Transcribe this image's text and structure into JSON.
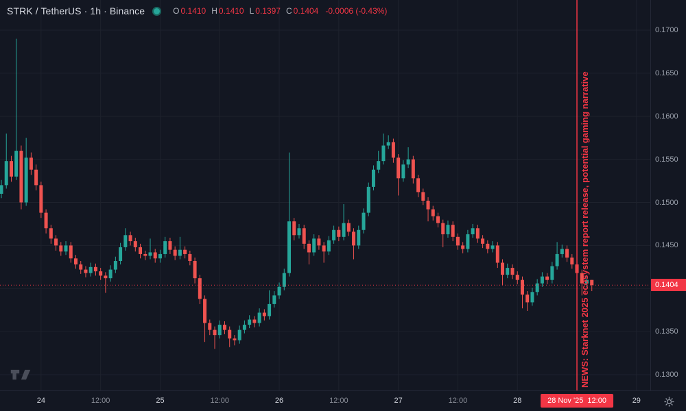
{
  "header": {
    "symbol_title": "STRK / TetherUS · 1h · Binance",
    "ohlc": {
      "o_label": "O",
      "o_value": "0.1410",
      "h_label": "H",
      "h_value": "0.1410",
      "l_label": "L",
      "l_value": "0.1397",
      "c_label": "C",
      "c_value": "0.1404",
      "change": "-0.0006 (-0.43%)"
    }
  },
  "colors": {
    "bg": "#131722",
    "up": "#26a69a",
    "down": "#ef5350",
    "accent_red": "#f23645",
    "grid": "#1e222d",
    "axis_text": "#9aa0ab",
    "axis_text_bright": "#d1d4dc",
    "border": "#242837"
  },
  "news_annotation": {
    "text": "NEWS: Starknet 2025 ecosystem report release, potential gaming narrative",
    "hour": 116
  },
  "price_axis": {
    "tick_labels": [
      "0.1700",
      "0.1650",
      "0.1600",
      "0.1550",
      "0.1500",
      "0.1450",
      "0.1400",
      "0.1350",
      "0.1300"
    ],
    "badge": "0.1404"
  },
  "time_axis": {
    "ticks": [
      {
        "label": "24",
        "hour": 8,
        "emphasis": true
      },
      {
        "label": "12:00",
        "hour": 20,
        "emphasis": false
      },
      {
        "label": "25",
        "hour": 32,
        "emphasis": true
      },
      {
        "label": "12:00",
        "hour": 44,
        "emphasis": false
      },
      {
        "label": "26",
        "hour": 56,
        "emphasis": true
      },
      {
        "label": "12:00",
        "hour": 68,
        "emphasis": false
      },
      {
        "label": "27",
        "hour": 80,
        "emphasis": true
      },
      {
        "label": "12:00",
        "hour": 92,
        "emphasis": false
      },
      {
        "label": "28",
        "hour": 104,
        "emphasis": true
      },
      {
        "label": "29",
        "hour": 128,
        "emphasis": true
      }
    ],
    "crosshair_label": "28 Nov '25  12:00",
    "crosshair_hour": 116
  },
  "icons": {
    "logo": "tradingview-logo",
    "settings": "gear"
  },
  "chart_data": {
    "type": "candlestick",
    "title": "STRK / TetherUS · 1h · Binance",
    "interval": "1h",
    "exchange": "Binance",
    "x_axis_days_visible": [
      "24",
      "25",
      "26",
      "27",
      "28",
      "29"
    ],
    "x_start_label": "23 Nov '25 16:00 (first candle, 1h step)",
    "ylim": [
      0.1285,
      0.1715
    ],
    "price_ticks": [
      0.17,
      0.165,
      0.16,
      0.155,
      0.15,
      0.145,
      0.14,
      0.135,
      0.13
    ],
    "last_price": 0.1404,
    "news_line_hour": 116,
    "grid": true,
    "candles_format": [
      "open",
      "high",
      "low",
      "close"
    ],
    "candles": [
      [
        0.151,
        0.1526,
        0.1505,
        0.152
      ],
      [
        0.152,
        0.158,
        0.1516,
        0.1548
      ],
      [
        0.1548,
        0.1554,
        0.1524,
        0.153
      ],
      [
        0.153,
        0.169,
        0.1526,
        0.156
      ],
      [
        0.156,
        0.1566,
        0.1492,
        0.15
      ],
      [
        0.15,
        0.1575,
        0.1496,
        0.1552
      ],
      [
        0.1552,
        0.1558,
        0.1532,
        0.1538
      ],
      [
        0.1538,
        0.1544,
        0.1514,
        0.152
      ],
      [
        0.152,
        0.1524,
        0.1482,
        0.1488
      ],
      [
        0.1488,
        0.1492,
        0.1464,
        0.147
      ],
      [
        0.147,
        0.1474,
        0.1452,
        0.1458
      ],
      [
        0.1458,
        0.1462,
        0.1444,
        0.145
      ],
      [
        0.145,
        0.1454,
        0.1438,
        0.1443
      ],
      [
        0.1443,
        0.1455,
        0.1439,
        0.145
      ],
      [
        0.145,
        0.1454,
        0.143,
        0.1435
      ],
      [
        0.1435,
        0.1439,
        0.1423,
        0.1428
      ],
      [
        0.1428,
        0.1432,
        0.1417,
        0.1422
      ],
      [
        0.1422,
        0.1426,
        0.1413,
        0.1418
      ],
      [
        0.1418,
        0.143,
        0.1414,
        0.1425
      ],
      [
        0.1425,
        0.1429,
        0.1415,
        0.142
      ],
      [
        0.142,
        0.1424,
        0.141,
        0.1415
      ],
      [
        0.1415,
        0.1419,
        0.1395,
        0.1412
      ],
      [
        0.1412,
        0.1427,
        0.1408,
        0.1422
      ],
      [
        0.1422,
        0.1437,
        0.1418,
        0.1432
      ],
      [
        0.1432,
        0.1453,
        0.1428,
        0.1448
      ],
      [
        0.1448,
        0.147,
        0.1444,
        0.1462
      ],
      [
        0.1462,
        0.1466,
        0.145,
        0.1455
      ],
      [
        0.1455,
        0.1459,
        0.1443,
        0.1448
      ],
      [
        0.1448,
        0.1452,
        0.1435,
        0.144
      ],
      [
        0.144,
        0.1444,
        0.1433,
        0.1438
      ],
      [
        0.1438,
        0.1458,
        0.1434,
        0.1442
      ],
      [
        0.1442,
        0.1446,
        0.143,
        0.1435
      ],
      [
        0.1435,
        0.1445,
        0.143,
        0.144
      ],
      [
        0.144,
        0.146,
        0.1436,
        0.1455
      ],
      [
        0.1455,
        0.1459,
        0.144,
        0.1445
      ],
      [
        0.1445,
        0.1449,
        0.1433,
        0.1438
      ],
      [
        0.1438,
        0.146,
        0.1434,
        0.1445
      ],
      [
        0.1445,
        0.1449,
        0.1435,
        0.144
      ],
      [
        0.144,
        0.1444,
        0.1427,
        0.1432
      ],
      [
        0.1432,
        0.1436,
        0.1406,
        0.1412
      ],
      [
        0.1412,
        0.1416,
        0.1382,
        0.1388
      ],
      [
        0.1388,
        0.1392,
        0.1338,
        0.136
      ],
      [
        0.136,
        0.1364,
        0.1346,
        0.1352
      ],
      [
        0.1352,
        0.1356,
        0.133,
        0.1346
      ],
      [
        0.1346,
        0.1363,
        0.1342,
        0.1358
      ],
      [
        0.1358,
        0.1362,
        0.1347,
        0.1352
      ],
      [
        0.1352,
        0.1356,
        0.1332,
        0.1342
      ],
      [
        0.1342,
        0.1346,
        0.1334,
        0.134
      ],
      [
        0.134,
        0.1357,
        0.1336,
        0.1352
      ],
      [
        0.1352,
        0.1363,
        0.1348,
        0.1358
      ],
      [
        0.1358,
        0.1369,
        0.1354,
        0.1364
      ],
      [
        0.1364,
        0.1368,
        0.1355,
        0.136
      ],
      [
        0.136,
        0.1377,
        0.1356,
        0.1372
      ],
      [
        0.1372,
        0.1376,
        0.1363,
        0.1368
      ],
      [
        0.1368,
        0.1398,
        0.1364,
        0.1382
      ],
      [
        0.1382,
        0.1397,
        0.1378,
        0.1392
      ],
      [
        0.1392,
        0.1407,
        0.1388,
        0.1402
      ],
      [
        0.1402,
        0.1423,
        0.1398,
        0.1418
      ],
      [
        0.1418,
        0.1558,
        0.1414,
        0.1478
      ],
      [
        0.1478,
        0.1482,
        0.1456,
        0.1462
      ],
      [
        0.1462,
        0.1475,
        0.1458,
        0.147
      ],
      [
        0.147,
        0.1474,
        0.1446,
        0.1452
      ],
      [
        0.1452,
        0.1456,
        0.1428,
        0.1442
      ],
      [
        0.1442,
        0.1463,
        0.1438,
        0.1458
      ],
      [
        0.1458,
        0.1462,
        0.1445,
        0.145
      ],
      [
        0.145,
        0.1454,
        0.143,
        0.1443
      ],
      [
        0.1443,
        0.1461,
        0.1439,
        0.1456
      ],
      [
        0.1456,
        0.1473,
        0.1452,
        0.1468
      ],
      [
        0.1468,
        0.1472,
        0.1455,
        0.146
      ],
      [
        0.146,
        0.1498,
        0.1456,
        0.1476
      ],
      [
        0.1476,
        0.148,
        0.1461,
        0.1466
      ],
      [
        0.1466,
        0.147,
        0.1434,
        0.145
      ],
      [
        0.145,
        0.1473,
        0.1446,
        0.1468
      ],
      [
        0.1468,
        0.1493,
        0.1464,
        0.1488
      ],
      [
        0.1488,
        0.1523,
        0.1484,
        0.1518
      ],
      [
        0.1518,
        0.1543,
        0.1514,
        0.1538
      ],
      [
        0.1538,
        0.156,
        0.1534,
        0.1548
      ],
      [
        0.1548,
        0.158,
        0.1544,
        0.1566
      ],
      [
        0.1566,
        0.1578,
        0.1562,
        0.157
      ],
      [
        0.157,
        0.1574,
        0.1546,
        0.1552
      ],
      [
        0.1552,
        0.1556,
        0.1508,
        0.1528
      ],
      [
        0.1528,
        0.1549,
        0.1524,
        0.1544
      ],
      [
        0.1544,
        0.1564,
        0.154,
        0.155
      ],
      [
        0.155,
        0.1554,
        0.1522,
        0.1528
      ],
      [
        0.1528,
        0.1532,
        0.1506,
        0.1512
      ],
      [
        0.1512,
        0.1516,
        0.1497,
        0.1502
      ],
      [
        0.1502,
        0.1506,
        0.1478,
        0.1492
      ],
      [
        0.1492,
        0.1496,
        0.1479,
        0.1484
      ],
      [
        0.1484,
        0.1488,
        0.1471,
        0.1476
      ],
      [
        0.1476,
        0.148,
        0.1448,
        0.1463
      ],
      [
        0.1463,
        0.1479,
        0.1459,
        0.1474
      ],
      [
        0.1474,
        0.1478,
        0.1455,
        0.146
      ],
      [
        0.146,
        0.1464,
        0.1445,
        0.145
      ],
      [
        0.145,
        0.1454,
        0.1441,
        0.1446
      ],
      [
        0.1446,
        0.1468,
        0.1442,
        0.1463
      ],
      [
        0.1463,
        0.1475,
        0.1459,
        0.147
      ],
      [
        0.147,
        0.1474,
        0.1453,
        0.1458
      ],
      [
        0.1458,
        0.1462,
        0.1447,
        0.1452
      ],
      [
        0.1452,
        0.1456,
        0.1441,
        0.1446
      ],
      [
        0.1446,
        0.1455,
        0.1442,
        0.145
      ],
      [
        0.145,
        0.1454,
        0.1424,
        0.143
      ],
      [
        0.143,
        0.1434,
        0.1404,
        0.1416
      ],
      [
        0.1416,
        0.1429,
        0.1412,
        0.1424
      ],
      [
        0.1424,
        0.1428,
        0.1411,
        0.1416
      ],
      [
        0.1416,
        0.142,
        0.1405,
        0.141
      ],
      [
        0.141,
        0.1414,
        0.1377,
        0.1393
      ],
      [
        0.1393,
        0.1397,
        0.1374,
        0.1384
      ],
      [
        0.1384,
        0.1401,
        0.138,
        0.1396
      ],
      [
        0.1396,
        0.1411,
        0.1392,
        0.1406
      ],
      [
        0.1406,
        0.1419,
        0.1402,
        0.1414
      ],
      [
        0.1414,
        0.1418,
        0.1405,
        0.141
      ],
      [
        0.141,
        0.1431,
        0.1406,
        0.1426
      ],
      [
        0.1426,
        0.1454,
        0.1422,
        0.144
      ],
      [
        0.144,
        0.1451,
        0.1436,
        0.1446
      ],
      [
        0.1446,
        0.145,
        0.1431,
        0.1436
      ],
      [
        0.1436,
        0.144,
        0.1423,
        0.1428
      ],
      [
        0.1428,
        0.1432,
        0.1413,
        0.1418
      ],
      [
        0.1418,
        0.1422,
        0.1392,
        0.1406
      ],
      [
        0.1406,
        0.1415,
        0.1401,
        0.141
      ],
      [
        0.141,
        0.141,
        0.1397,
        0.1404
      ]
    ]
  }
}
